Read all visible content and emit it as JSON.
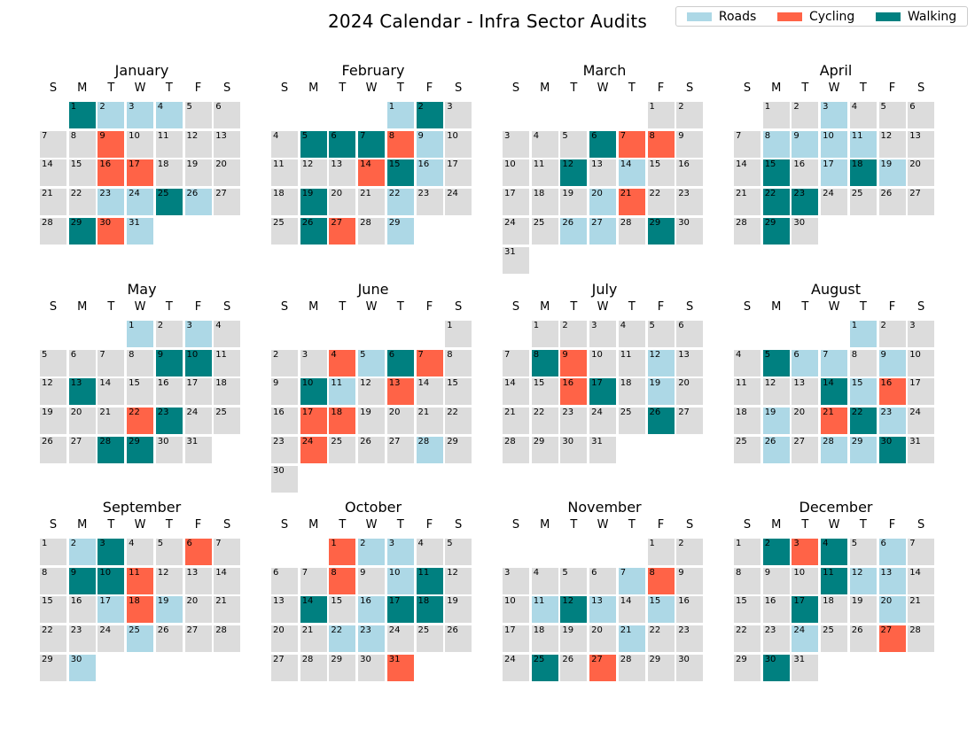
{
  "title": "2024 Calendar - Infra Sector Audits",
  "legend": [
    {
      "label": "Roads",
      "color": "#add8e6"
    },
    {
      "label": "Cycling",
      "color": "#ff6347"
    },
    {
      "label": "Walking",
      "color": "#008080"
    }
  ],
  "weekday_headers": [
    "S",
    "M",
    "T",
    "W",
    "T",
    "F",
    "S"
  ],
  "colors": {
    "Roads": "#add8e6",
    "Cycling": "#ff6347",
    "Walking": "#008080",
    "empty": "#dcdcdc"
  },
  "chart_data": {
    "type": "heatmap",
    "title": "2024 Calendar - Infra Sector Audits",
    "year": 2024,
    "week_starts": "Sunday",
    "categories": [
      "Roads",
      "Cycling",
      "Walking"
    ],
    "legend_position": "top-right",
    "months": [
      {
        "name": "January",
        "first_weekday": 1,
        "days": 31,
        "audits": {
          "1": "Walking",
          "2": "Roads",
          "3": "Roads",
          "4": "Roads",
          "9": "Cycling",
          "16": "Cycling",
          "17": "Cycling",
          "23": "Roads",
          "24": "Roads",
          "25": "Walking",
          "26": "Roads",
          "29": "Walking",
          "30": "Cycling",
          "31": "Roads"
        }
      },
      {
        "name": "February",
        "first_weekday": 4,
        "days": 29,
        "audits": {
          "1": "Roads",
          "2": "Walking",
          "5": "Walking",
          "6": "Walking",
          "7": "Walking",
          "8": "Cycling",
          "9": "Roads",
          "14": "Cycling",
          "15": "Walking",
          "16": "Roads",
          "19": "Walking",
          "22": "Roads",
          "26": "Walking",
          "27": "Cycling",
          "29": "Roads"
        }
      },
      {
        "name": "March",
        "first_weekday": 5,
        "days": 31,
        "audits": {
          "6": "Walking",
          "7": "Cycling",
          "8": "Cycling",
          "12": "Walking",
          "14": "Roads",
          "20": "Roads",
          "21": "Cycling",
          "26": "Roads",
          "27": "Roads",
          "29": "Walking"
        }
      },
      {
        "name": "April",
        "first_weekday": 1,
        "days": 30,
        "audits": {
          "3": "Roads",
          "8": "Roads",
          "9": "Roads",
          "10": "Roads",
          "11": "Roads",
          "15": "Walking",
          "17": "Roads",
          "18": "Walking",
          "19": "Roads",
          "22": "Walking",
          "23": "Walking",
          "29": "Walking"
        }
      },
      {
        "name": "May",
        "first_weekday": 3,
        "days": 31,
        "audits": {
          "1": "Roads",
          "3": "Roads",
          "9": "Walking",
          "10": "Walking",
          "13": "Walking",
          "22": "Cycling",
          "23": "Walking",
          "28": "Walking",
          "29": "Walking"
        }
      },
      {
        "name": "June",
        "first_weekday": 6,
        "days": 30,
        "audits": {
          "4": "Cycling",
          "5": "Roads",
          "6": "Walking",
          "7": "Cycling",
          "10": "Walking",
          "11": "Roads",
          "13": "Cycling",
          "17": "Cycling",
          "18": "Cycling",
          "24": "Cycling",
          "28": "Roads"
        }
      },
      {
        "name": "July",
        "first_weekday": 1,
        "days": 31,
        "audits": {
          "8": "Walking",
          "9": "Cycling",
          "12": "Roads",
          "16": "Cycling",
          "17": "Walking",
          "19": "Roads",
          "26": "Walking"
        }
      },
      {
        "name": "August",
        "first_weekday": 4,
        "days": 31,
        "audits": {
          "1": "Roads",
          "5": "Walking",
          "6": "Roads",
          "7": "Roads",
          "9": "Roads",
          "14": "Walking",
          "15": "Roads",
          "16": "Cycling",
          "19": "Roads",
          "21": "Cycling",
          "22": "Walking",
          "23": "Roads",
          "26": "Roads",
          "28": "Roads",
          "29": "Roads",
          "30": "Walking"
        }
      },
      {
        "name": "September",
        "first_weekday": 0,
        "days": 30,
        "audits": {
          "2": "Roads",
          "3": "Walking",
          "6": "Cycling",
          "9": "Walking",
          "10": "Walking",
          "11": "Cycling",
          "17": "Roads",
          "18": "Cycling",
          "19": "Roads",
          "25": "Roads",
          "30": "Roads"
        }
      },
      {
        "name": "October",
        "first_weekday": 2,
        "days": 31,
        "audits": {
          "1": "Cycling",
          "2": "Roads",
          "3": "Roads",
          "8": "Cycling",
          "10": "Roads",
          "11": "Walking",
          "14": "Walking",
          "16": "Roads",
          "17": "Walking",
          "18": "Walking",
          "22": "Roads",
          "23": "Roads",
          "31": "Cycling"
        }
      },
      {
        "name": "November",
        "first_weekday": 5,
        "days": 30,
        "audits": {
          "7": "Roads",
          "8": "Cycling",
          "11": "Roads",
          "12": "Walking",
          "13": "Roads",
          "15": "Roads",
          "21": "Roads",
          "25": "Walking",
          "27": "Cycling"
        }
      },
      {
        "name": "December",
        "first_weekday": 0,
        "days": 31,
        "audits": {
          "2": "Walking",
          "3": "Cycling",
          "4": "Walking",
          "6": "Roads",
          "11": "Walking",
          "12": "Roads",
          "13": "Roads",
          "17": "Walking",
          "20": "Roads",
          "24": "Roads",
          "27": "Cycling",
          "30": "Walking"
        }
      }
    ]
  }
}
